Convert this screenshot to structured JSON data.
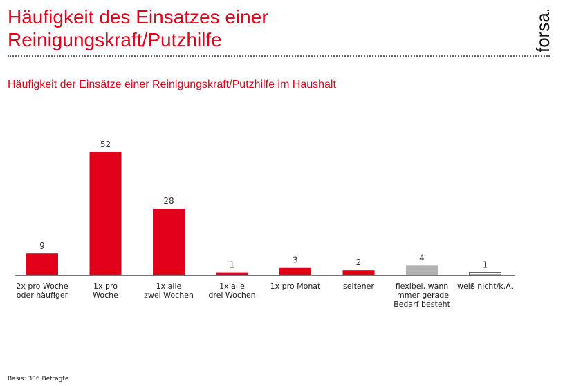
{
  "header": {
    "title_line1": "Häufigkeit des Einsatzes einer",
    "title_line2": "Reinigungskraft/Putzhilfe",
    "logo_text": "forsa."
  },
  "subtitle": "Häufigkeit der Einsätze einer Reinigungskraft/Putzhilfe im Haushalt",
  "footer": {
    "basis": "Basis: 306 Befragte"
  },
  "colors": {
    "accent": "#e2001a",
    "gray_bar": "#b3b3b3",
    "white_bar": "#ffffff"
  },
  "chart_data": {
    "type": "bar",
    "title": "Häufigkeit der Einsätze einer Reinigungskraft/Putzhilfe im Haushalt",
    "xlabel": "",
    "ylabel": "",
    "ylim": [
      0,
      52
    ],
    "grid": false,
    "legend": "none",
    "categories": [
      [
        "2x pro Woche",
        "oder häufiger"
      ],
      [
        "1x pro",
        "Woche"
      ],
      [
        "1x alle",
        "zwei Wochen"
      ],
      [
        "1x alle",
        "drei Wochen"
      ],
      [
        "1x pro Monat"
      ],
      [
        "seltener"
      ],
      [
        "flexibel, wann",
        "immer gerade",
        "Bedarf besteht"
      ],
      [
        "weiß nicht/k.A."
      ]
    ],
    "values": [
      9,
      52,
      28,
      1,
      3,
      2,
      4,
      1
    ],
    "value_labels": [
      "9",
      "52",
      "28",
      "1",
      "3",
      "2",
      "4",
      "1"
    ],
    "bar_colors": [
      "#e2001a",
      "#e2001a",
      "#e2001a",
      "#e2001a",
      "#e2001a",
      "#e2001a",
      "#b3b3b3",
      "#ffffff"
    ]
  }
}
